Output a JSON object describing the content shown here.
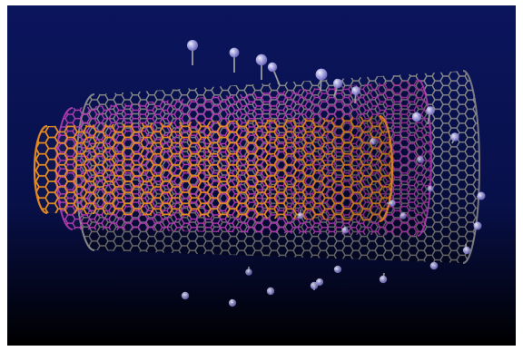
{
  "image": {
    "subject": "multi-walled-carbon-nanotube",
    "colors": {
      "background_top": "#0b155c",
      "background_mid": "#08104a",
      "background_bottom": "#000000",
      "outer_wall": "#8c8c8c",
      "middle_wall": "#b23ab2",
      "inner_wall": "#e98b1f",
      "atom_fill": "#b8b6f0",
      "atom_stick": "#9f9f9f"
    }
  }
}
